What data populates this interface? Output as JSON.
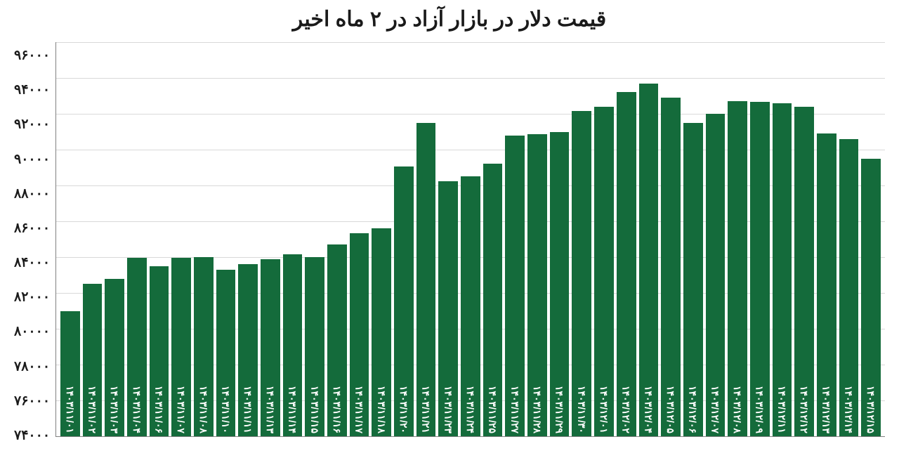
{
  "chart": {
    "type": "bar",
    "title": "قیمت دلار در بازار آزاد در ۲ ماه اخیر",
    "title_fontsize": 30,
    "title_color": "#1a1a1a",
    "background_color": "#ffffff",
    "bar_color": "#146b3b",
    "grid_color": "#d9d9d9",
    "axis_color": "#808080",
    "axis_label_color": "#1a1a1a",
    "axis_label_fontsize": 19,
    "bar_label_color": "#ffffff",
    "bar_label_fontsize": 14,
    "ylim": [
      74000,
      96000
    ],
    "ytick_step": 2000,
    "yticks": [
      "۹۶۰۰۰",
      "۹۴۰۰۰",
      "۹۲۰۰۰",
      "۹۰۰۰۰",
      "۸۸۰۰۰",
      "۸۶۰۰۰",
      "۸۴۰۰۰",
      "۸۲۰۰۰",
      "۸۰۰۰۰",
      "۷۸۰۰۰",
      "۷۶۰۰۰",
      "۷۴۰۰۰"
    ],
    "bar_width": 0.85,
    "categories": [
      "۱۴۰۳/۱۱/۰۱",
      "۱۴۰۳/۱۱/۰۲",
      "۱۴۰۳/۱۱/۰۳",
      "۱۴۰۳/۱۱/۰۴",
      "۱۴۰۳/۱۱/۰۶",
      "۱۴۰۳/۱۱/۰۷",
      "۱۴۰۳/۱۱/۰۸",
      "۱۴۰۳/۱۱/۱۰",
      "۱۴۰۳/۱۱/۱۱",
      "۱۴۰۳/۱۱/۱۳",
      "۱۴۰۳/۱۱/۱۴",
      "۱۴۰۳/۱۱/۱۵",
      "۱۴۰۳/۱۱/۱۶",
      "۱۴۰۳/۱۱/۱۷",
      "۱۴۰۳/۱۱/۱۸",
      "۱۴۰۳/۱۱/۲۰",
      "۱۴۰۳/۱۱/۲۱",
      "۱۴۰۳/۱۱/۲۳",
      "۱۴۰۳/۱۱/۲۴",
      "۱۴۰۳/۱۱/۲۵",
      "۱۴۰۳/۱۱/۲۷",
      "۱۴۰۳/۱۱/۲۸",
      "۱۴۰۳/۱۱/۲۹",
      "۱۴۰۳/۱۱/۳۰",
      "۱۴۰۳/۱۲/۰۱",
      "۱۴۰۳/۱۲/۰۲",
      "۱۴۰۳/۱۲/۰۴",
      "۱۴۰۳/۱۲/۰۵",
      "۱۴۰۳/۱۲/۰۶",
      "۱۴۰۳/۱۲/۰۷",
      "۱۴۰۳/۱۲/۰۸",
      "۱۴۰۳/۱۲/۰۹",
      "۱۴۰۳/۱۲/۱۱",
      "۱۴۰۳/۱۲/۱۲",
      "۱۴۰۳/۱۲/۱۳",
      "۱۴۰۳/۱۲/۱۴",
      "۱۴۰۳/۱۲/۱۵"
    ],
    "values": [
      81000,
      82500,
      82800,
      83950,
      83500,
      83950,
      84000,
      83300,
      83600,
      83900,
      84150,
      84000,
      84700,
      85350,
      85600,
      89050,
      91500,
      88250,
      88500,
      89200,
      90800,
      90850,
      91000,
      92150,
      92400,
      93200,
      93700,
      92900,
      91500,
      92000,
      92700,
      92650,
      92600,
      92400,
      90900,
      90600,
      89500
    ]
  }
}
